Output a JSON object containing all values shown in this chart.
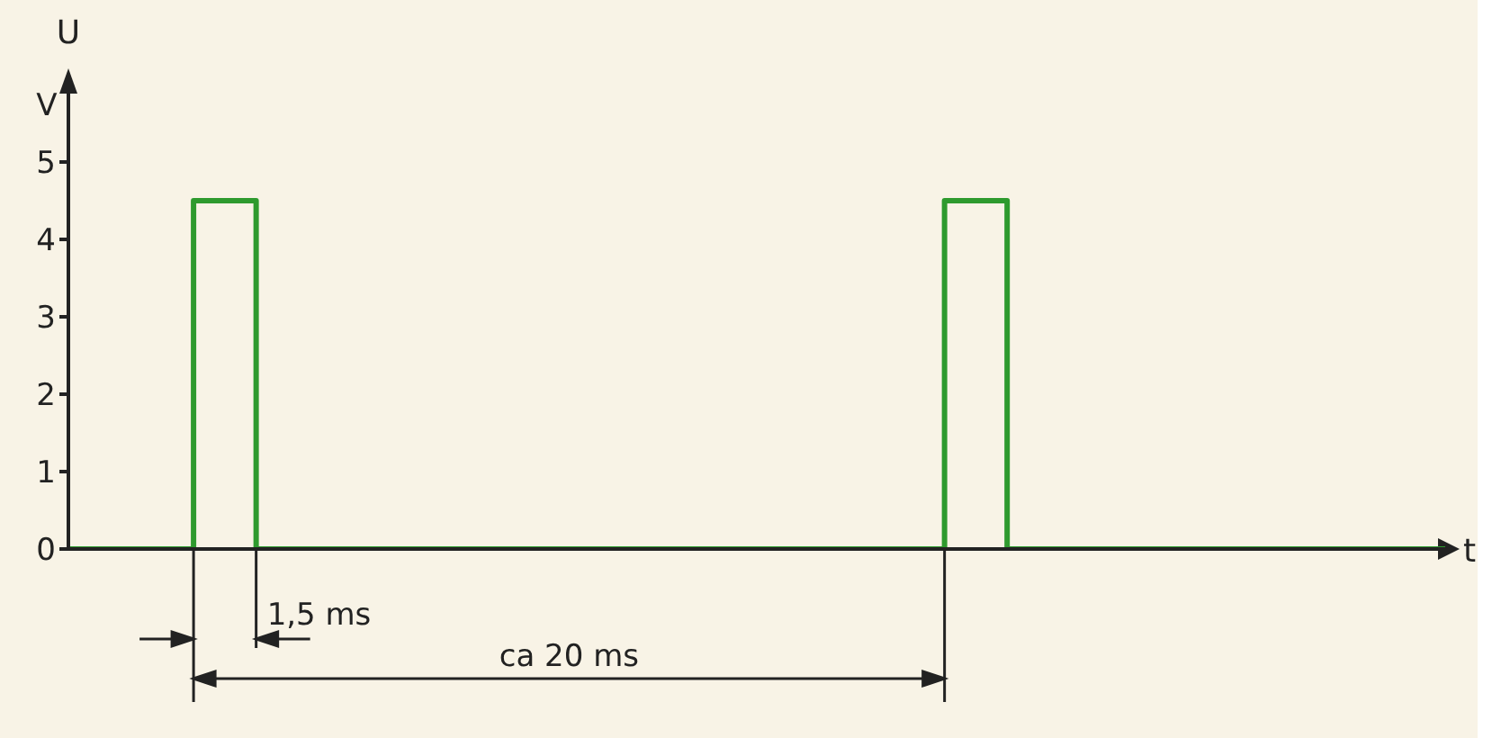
{
  "chart_data": {
    "type": "step",
    "ylabel": "U",
    "xlabel": "t",
    "categories": [
      null,
      null,
      null,
      null,
      null,
      null,
      null,
      null,
      null,
      null,
      null,
      null,
      null,
      null,
      null,
      null,
      null,
      null,
      null,
      null,
      null,
      null,
      null
    ],
    "series": [
      {
        "color": "#2e9a2e",
        "values": [
          0,
          0,
          4.5,
          0,
          0,
          0,
          0,
          0,
          0,
          0,
          0,
          0,
          0,
          0,
          4.5,
          0,
          0,
          0,
          0,
          0,
          0,
          0,
          0
        ]
      }
    ],
    "ylim": [
      0,
      5
    ],
    "yticks": [
      0,
      1,
      2,
      3,
      4,
      5
    ],
    "tick_labels": "y",
    "grid": false,
    "legend": false,
    "marker": "none",
    "line_style": "solid",
    "annotations": [
      "V",
      "1,5 ms",
      "ca 20 ms"
    ]
  }
}
